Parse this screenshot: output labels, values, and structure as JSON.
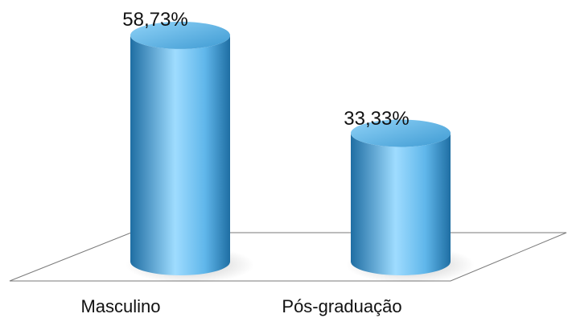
{
  "chart_data": {
    "type": "bar",
    "style": "3d-cylinder",
    "categories": [
      "Masculino",
      "Pós-graduação"
    ],
    "values": [
      58.73,
      33.33
    ],
    "value_labels": [
      "58,73%",
      "33,33%"
    ],
    "ylim": [
      0,
      70
    ],
    "grid": false,
    "legend": "none",
    "colors": {
      "bar_light": "#9fdcff",
      "bar_mid": "#5fb6ea",
      "bar_dark": "#1f6ea3",
      "top_light": "#8fd2f7",
      "top_dark": "#3f9bd3",
      "floor_stroke": "#7a7a7a"
    }
  }
}
